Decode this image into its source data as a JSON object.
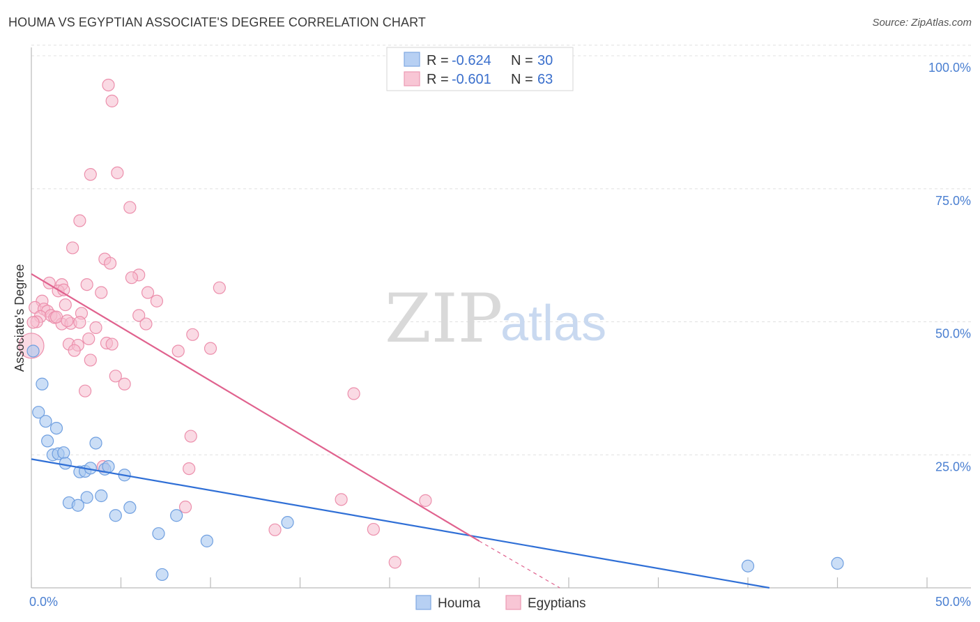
{
  "title": "HOUMA VS EGYPTIAN ASSOCIATE'S DEGREE CORRELATION CHART",
  "source": "Source: ZipAtlas.com",
  "watermark": {
    "zip": "ZIP",
    "atlas": "atlas"
  },
  "legend": {
    "houma": {
      "r_label": "R =",
      "r_value": "-0.624",
      "n_label": "N =",
      "n_value": "30"
    },
    "egyptians": {
      "r_label": "R =",
      "r_value": "-0.601",
      "n_label": "N =",
      "n_value": "63"
    }
  },
  "bottom_legend": {
    "houma": "Houma",
    "egyptians": "Egyptians"
  },
  "colors": {
    "houma_fill": "#a9c8f0",
    "houma_stroke": "#6f9fe0",
    "houma_line": "#2f6fd6",
    "egypt_fill": "#f6bccd",
    "egypt_stroke": "#ec8fac",
    "egypt_line": "#e0628e",
    "grid": "#e0e0e0",
    "tick_text": "#4a7fd1"
  },
  "chart_data": {
    "type": "scatter",
    "title": "HOUMA VS EGYPTIAN ASSOCIATE'S DEGREE CORRELATION CHART",
    "xlabel": "",
    "ylabel": "Associate's Degree",
    "xlim": [
      0,
      50
    ],
    "ylim": [
      0,
      102
    ],
    "x_tick_labels": [
      "0.0%",
      "50.0%"
    ],
    "y_ticks": [
      25,
      50,
      75,
      100
    ],
    "y_tick_labels": [
      "25.0%",
      "50.0%",
      "75.0%",
      "100.0%"
    ],
    "grid": true,
    "series": [
      {
        "name": "Houma",
        "points": [
          [
            0.1,
            44.5
          ],
          [
            0.6,
            38.3
          ],
          [
            0.4,
            33.0
          ],
          [
            0.8,
            31.3
          ],
          [
            1.4,
            30.0
          ],
          [
            0.9,
            27.6
          ],
          [
            1.2,
            25.0
          ],
          [
            1.5,
            25.2
          ],
          [
            1.8,
            25.4
          ],
          [
            1.9,
            23.4
          ],
          [
            3.6,
            27.2
          ],
          [
            2.7,
            21.8
          ],
          [
            3.0,
            21.9
          ],
          [
            3.3,
            22.5
          ],
          [
            4.1,
            22.3
          ],
          [
            4.3,
            22.8
          ],
          [
            5.2,
            21.2
          ],
          [
            2.1,
            16.0
          ],
          [
            2.6,
            15.5
          ],
          [
            3.1,
            17.0
          ],
          [
            3.9,
            17.3
          ],
          [
            4.7,
            13.6
          ],
          [
            5.5,
            15.1
          ],
          [
            7.1,
            10.2
          ],
          [
            7.3,
            2.5
          ],
          [
            8.1,
            13.6
          ],
          [
            9.8,
            8.8
          ],
          [
            14.3,
            12.3
          ],
          [
            40.0,
            4.1
          ],
          [
            45.0,
            4.6
          ]
        ],
        "trendline": {
          "x": [
            0,
            41.2
          ],
          "y": [
            24.2,
            0
          ]
        }
      },
      {
        "name": "Egyptians",
        "points": [
          [
            4.3,
            94.5
          ],
          [
            4.5,
            91.5
          ],
          [
            4.8,
            78.0
          ],
          [
            3.3,
            77.7
          ],
          [
            5.5,
            71.5
          ],
          [
            2.7,
            69.0
          ],
          [
            2.3,
            63.9
          ],
          [
            4.1,
            61.8
          ],
          [
            4.4,
            61.0
          ],
          [
            6.0,
            58.8
          ],
          [
            5.6,
            58.3
          ],
          [
            1.0,
            57.3
          ],
          [
            1.7,
            57.0
          ],
          [
            3.1,
            57.0
          ],
          [
            10.5,
            56.4
          ],
          [
            1.5,
            55.8
          ],
          [
            1.8,
            56.0
          ],
          [
            3.9,
            55.5
          ],
          [
            6.5,
            55.5
          ],
          [
            0.6,
            53.9
          ],
          [
            7.0,
            53.9
          ],
          [
            1.9,
            53.2
          ],
          [
            0.2,
            52.7
          ],
          [
            0.7,
            52.4
          ],
          [
            0.9,
            52.0
          ],
          [
            0.5,
            51.0
          ],
          [
            1.1,
            51.2
          ],
          [
            1.3,
            50.8
          ],
          [
            2.8,
            51.6
          ],
          [
            6.0,
            51.2
          ],
          [
            0.3,
            50.0
          ],
          [
            1.7,
            49.6
          ],
          [
            2.2,
            49.7
          ],
          [
            2.7,
            49.9
          ],
          [
            6.4,
            49.6
          ],
          [
            0.1,
            49.9
          ],
          [
            3.6,
            48.9
          ],
          [
            9.0,
            47.6
          ],
          [
            3.2,
            46.8
          ],
          [
            2.1,
            45.8
          ],
          [
            2.6,
            45.6
          ],
          [
            4.2,
            46.0
          ],
          [
            4.5,
            45.8
          ],
          [
            10.0,
            45.0
          ],
          [
            2.4,
            44.6
          ],
          [
            8.2,
            44.5
          ],
          [
            3.3,
            42.8
          ],
          [
            4.7,
            39.8
          ],
          [
            5.2,
            38.3
          ],
          [
            3.0,
            37.0
          ],
          [
            18.0,
            36.5
          ],
          [
            8.9,
            28.5
          ],
          [
            4.0,
            22.8
          ],
          [
            8.8,
            22.4
          ],
          [
            8.6,
            15.2
          ],
          [
            17.3,
            16.6
          ],
          [
            22.0,
            16.4
          ],
          [
            13.6,
            10.9
          ],
          [
            19.1,
            11.0
          ],
          [
            20.3,
            4.8
          ],
          [
            0.0,
            45.5
          ],
          [
            1.4,
            50.9
          ],
          [
            2.0,
            50.2
          ]
        ],
        "trendline": {
          "x": [
            0,
            25.0
          ],
          "y": [
            59.0,
            8.8
          ]
        },
        "trendline_dashed": {
          "x": [
            25.0,
            29.5
          ],
          "y": [
            8.8,
            0
          ]
        }
      }
    ]
  }
}
